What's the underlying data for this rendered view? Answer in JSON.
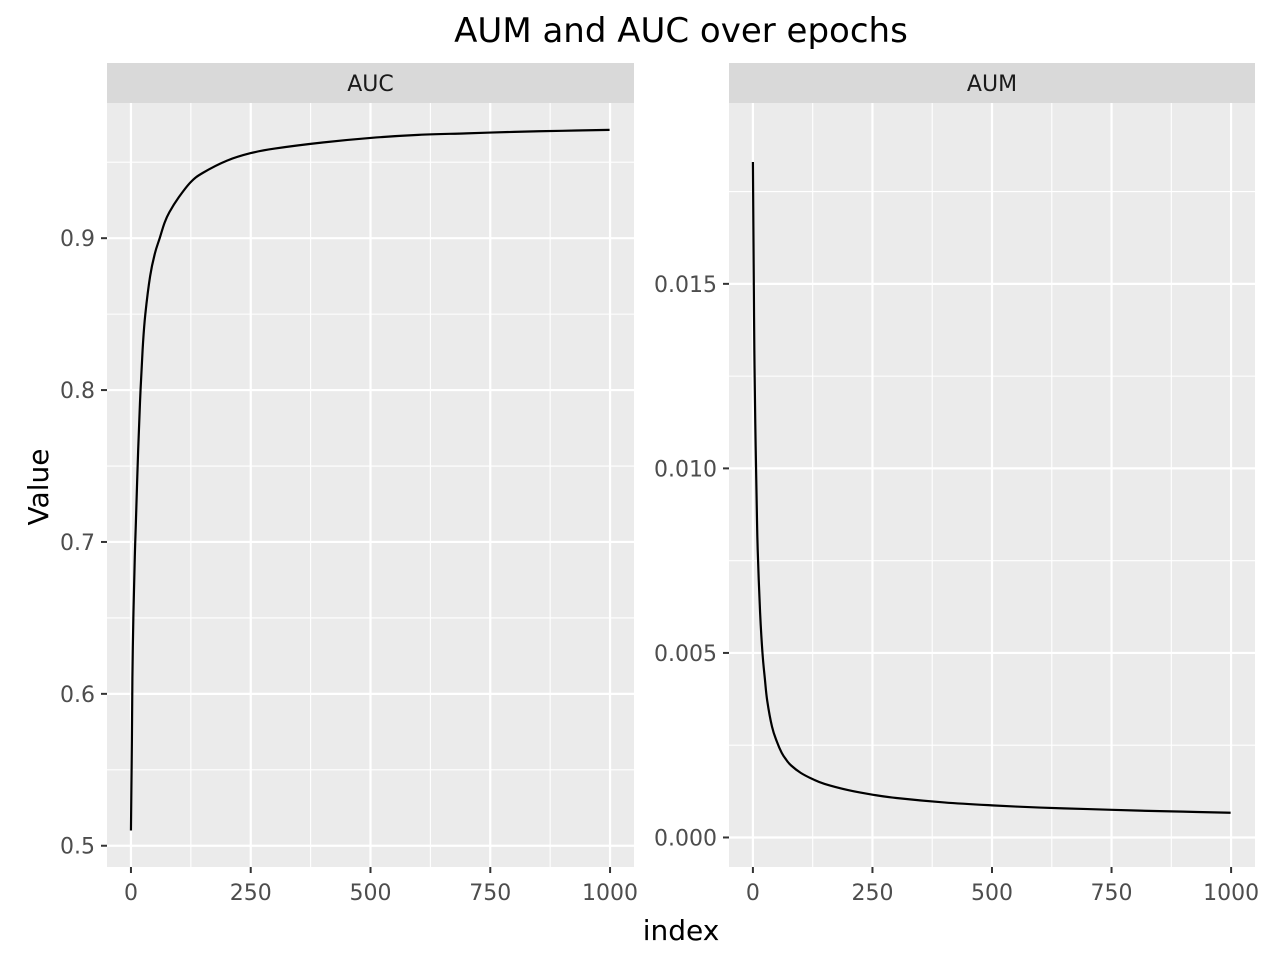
{
  "chart_data": {
    "type": "line",
    "title": "AUM and AUC over epochs",
    "xlabel": "index",
    "ylabel": "Value",
    "grid": true,
    "legend": "none",
    "colors": {
      "panel_background": "#ebebeb",
      "strip_background": "#d9d9d9",
      "grid": "#ffffff",
      "line": "#000000",
      "tick_text": "#4d4d4d"
    },
    "facets": [
      {
        "strip_label": "AUC",
        "xlim": [
          -50,
          1050
        ],
        "ylim": [
          0.486,
          0.989
        ],
        "x_ticks": [
          0,
          250,
          500,
          750,
          1000
        ],
        "x_tick_labels": [
          "0",
          "250",
          "500",
          "750",
          "1000"
        ],
        "y_ticks": [
          0.5,
          0.6,
          0.7,
          0.8,
          0.9
        ],
        "y_tick_labels": [
          "0.5",
          "0.6",
          "0.7",
          "0.8",
          "0.9"
        ],
        "series": [
          {
            "x": [
              0,
              1,
              2,
              3,
              5,
              8,
              10,
              15,
              20,
              25,
              30,
              40,
              50,
              60,
              70,
              80,
              100,
              125,
              150,
              200,
              250,
              300,
              400,
              500,
              600,
              700,
              800,
              900,
              999
            ],
            "y": [
              0.51,
              0.54,
              0.57,
              0.61,
              0.65,
              0.69,
              0.71,
              0.76,
              0.8,
              0.83,
              0.85,
              0.875,
              0.89,
              0.9,
              0.91,
              0.917,
              0.927,
              0.937,
              0.943,
              0.951,
              0.956,
              0.959,
              0.963,
              0.966,
              0.968,
              0.969,
              0.97,
              0.9707,
              0.9713
            ]
          }
        ]
      },
      {
        "strip_label": "AUM",
        "xlim": [
          -50,
          1050
        ],
        "ylim": [
          -0.0008,
          0.0199
        ],
        "x_ticks": [
          0,
          250,
          500,
          750,
          1000
        ],
        "x_tick_labels": [
          "0",
          "250",
          "500",
          "750",
          "1000"
        ],
        "y_ticks": [
          0,
          0.005,
          0.01,
          0.015
        ],
        "y_tick_labels": [
          "0.000",
          "0.005",
          "0.010",
          "0.015"
        ],
        "series": [
          {
            "x": [
              0,
              1,
              2,
              3,
              5,
              8,
              10,
              15,
              20,
              25,
              30,
              40,
              50,
              60,
              70,
              80,
              100,
              125,
              150,
              200,
              250,
              300,
              400,
              500,
              600,
              700,
              800,
              900,
              999
            ],
            "y": [
              0.0183,
              0.0165,
              0.0148,
              0.0132,
              0.0112,
              0.009,
              0.0078,
              0.0061,
              0.005,
              0.0043,
              0.0037,
              0.003,
              0.0026,
              0.0023,
              0.0021,
              0.00195,
              0.00175,
              0.00158,
              0.00145,
              0.00128,
              0.00116,
              0.00107,
              0.00095,
              0.00087,
              0.00081,
              0.00077,
              0.00073,
              0.0007,
              0.00067
            ]
          }
        ]
      }
    ]
  }
}
